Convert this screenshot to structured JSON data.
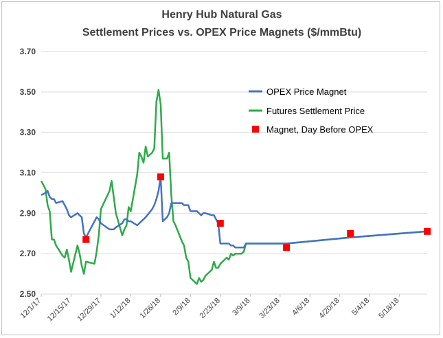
{
  "chart_data": {
    "type": "line",
    "title_lines": [
      "Henry Hub Natural Gas",
      "Settlement Prices vs. OPEX Price Magnets ($/mmBtu)"
    ],
    "x_is_date": true,
    "xlim": [
      "2017-12-01",
      "2018-05-31"
    ],
    "ylim": [
      2.5,
      3.7
    ],
    "y_ticks": [
      "2.50",
      "2.70",
      "2.90",
      "3.10",
      "3.30",
      "3.50",
      "3.70"
    ],
    "y_tick_values": [
      2.5,
      2.7,
      2.9,
      3.1,
      3.3,
      3.5,
      3.7
    ],
    "x_ticks": [
      {
        "label": "12/1/17",
        "date": "2017-12-01"
      },
      {
        "label": "12/15/17",
        "date": "2017-12-15"
      },
      {
        "label": "12/29/17",
        "date": "2017-12-29"
      },
      {
        "label": "1/12/18",
        "date": "2018-01-12"
      },
      {
        "label": "1/26/18",
        "date": "2018-01-26"
      },
      {
        "label": "2/9/18",
        "date": "2018-02-09"
      },
      {
        "label": "2/23/18",
        "date": "2018-02-23"
      },
      {
        "label": "3/9/18",
        "date": "2018-03-09"
      },
      {
        "label": "3/23/18",
        "date": "2018-03-23"
      },
      {
        "label": "4/6/18",
        "date": "2018-04-06"
      },
      {
        "label": "4/20/18",
        "date": "2018-04-20"
      },
      {
        "label": "5/4/18",
        "date": "2018-05-04"
      },
      {
        "label": "5/18/18",
        "date": "2018-05-18"
      }
    ],
    "grid": "horizontal",
    "legend_position": "right",
    "series": [
      {
        "name": "OPEX Price Magnet",
        "kind": "line",
        "color": "#4472c4",
        "points": [
          [
            "2017-12-01",
            2.99
          ],
          [
            "2017-12-03",
            3.0
          ],
          [
            "2017-12-04",
            3.01
          ],
          [
            "2017-12-05",
            2.98
          ],
          [
            "2017-12-06",
            2.97
          ],
          [
            "2017-12-07",
            2.97
          ],
          [
            "2017-12-08",
            2.95
          ],
          [
            "2017-12-11",
            2.96
          ],
          [
            "2017-12-12",
            2.94
          ],
          [
            "2017-12-13",
            2.92
          ],
          [
            "2017-12-14",
            2.89
          ],
          [
            "2017-12-15",
            2.88
          ],
          [
            "2017-12-18",
            2.9
          ],
          [
            "2017-12-19",
            2.89
          ],
          [
            "2017-12-20",
            2.88
          ],
          [
            "2017-12-21",
            2.8
          ],
          [
            "2017-12-22",
            2.78
          ],
          [
            "2017-12-26",
            2.86
          ],
          [
            "2017-12-27",
            2.88
          ],
          [
            "2017-12-28",
            2.87
          ],
          [
            "2017-12-29",
            2.85
          ],
          [
            "2018-01-02",
            2.82
          ],
          [
            "2018-01-03",
            2.82
          ],
          [
            "2018-01-04",
            2.82
          ],
          [
            "2018-01-05",
            2.83
          ],
          [
            "2018-01-08",
            2.85
          ],
          [
            "2018-01-09",
            2.87
          ],
          [
            "2018-01-10",
            2.87
          ],
          [
            "2018-01-11",
            2.86
          ],
          [
            "2018-01-12",
            2.86
          ],
          [
            "2018-01-15",
            2.84
          ],
          [
            "2018-01-16",
            2.85
          ],
          [
            "2018-01-17",
            2.86
          ],
          [
            "2018-01-18",
            2.87
          ],
          [
            "2018-01-19",
            2.88
          ],
          [
            "2018-01-22",
            2.92
          ],
          [
            "2018-01-23",
            2.94
          ],
          [
            "2018-01-24",
            2.97
          ],
          [
            "2018-01-25",
            3.01
          ],
          [
            "2018-01-26",
            3.08
          ],
          [
            "2018-01-27",
            2.86
          ],
          [
            "2018-01-29",
            2.88
          ],
          [
            "2018-01-30",
            2.9
          ],
          [
            "2018-01-31",
            2.95
          ],
          [
            "2018-02-01",
            2.95
          ],
          [
            "2018-02-02",
            2.95
          ],
          [
            "2018-02-05",
            2.95
          ],
          [
            "2018-02-06",
            2.94
          ],
          [
            "2018-02-07",
            2.94
          ],
          [
            "2018-02-08",
            2.94
          ],
          [
            "2018-02-09",
            2.91
          ],
          [
            "2018-02-12",
            2.91
          ],
          [
            "2018-02-13",
            2.9
          ],
          [
            "2018-02-14",
            2.89
          ],
          [
            "2018-02-15",
            2.9
          ],
          [
            "2018-02-16",
            2.9
          ],
          [
            "2018-02-19",
            2.89
          ],
          [
            "2018-02-20",
            2.89
          ],
          [
            "2018-02-21",
            2.87
          ],
          [
            "2018-02-22",
            2.85
          ],
          [
            "2018-02-23",
            2.75
          ],
          [
            "2018-02-26",
            2.75
          ],
          [
            "2018-02-27",
            2.75
          ],
          [
            "2018-02-28",
            2.74
          ],
          [
            "2018-03-01",
            2.74
          ],
          [
            "2018-03-02",
            2.73
          ],
          [
            "2018-03-05",
            2.73
          ],
          [
            "2018-03-06",
            2.73
          ],
          [
            "2018-03-07",
            2.75
          ],
          [
            "2018-03-08",
            2.75
          ],
          [
            "2018-03-09",
            2.75
          ],
          [
            "2018-03-26",
            2.75
          ],
          [
            "2018-04-25",
            2.78
          ],
          [
            "2018-05-31",
            2.81
          ]
        ]
      },
      {
        "name": "Futures Settlement Price",
        "kind": "line",
        "color": "#2eaa4a",
        "points": [
          [
            "2017-12-01",
            3.06
          ],
          [
            "2017-12-02",
            3.04
          ],
          [
            "2017-12-03",
            3.02
          ],
          [
            "2017-12-04",
            2.94
          ],
          [
            "2017-12-05",
            2.91
          ],
          [
            "2017-12-06",
            2.77
          ],
          [
            "2017-12-07",
            2.77
          ],
          [
            "2017-12-08",
            2.74
          ],
          [
            "2017-12-11",
            2.69
          ],
          [
            "2017-12-12",
            2.68
          ],
          [
            "2017-12-13",
            2.72
          ],
          [
            "2017-12-14",
            2.67
          ],
          [
            "2017-12-15",
            2.61
          ],
          [
            "2017-12-18",
            2.74
          ],
          [
            "2017-12-19",
            2.7
          ],
          [
            "2017-12-20",
            2.64
          ],
          [
            "2017-12-21",
            2.6
          ],
          [
            "2017-12-22",
            2.66
          ],
          [
            "2017-12-26",
            2.65
          ],
          [
            "2017-12-27",
            2.71
          ],
          [
            "2017-12-28",
            2.79
          ],
          [
            "2017-12-29",
            2.92
          ],
          [
            "2018-01-02",
            3.01
          ],
          [
            "2018-01-03",
            3.06
          ],
          [
            "2018-01-04",
            2.98
          ],
          [
            "2018-01-05",
            2.9
          ],
          [
            "2018-01-08",
            2.79
          ],
          [
            "2018-01-09",
            2.82
          ],
          [
            "2018-01-10",
            2.84
          ],
          [
            "2018-01-11",
            2.93
          ],
          [
            "2018-01-12",
            2.91
          ],
          [
            "2018-01-15",
            3.09
          ],
          [
            "2018-01-16",
            3.2
          ],
          [
            "2018-01-17",
            3.18
          ],
          [
            "2018-01-18",
            3.15
          ],
          [
            "2018-01-19",
            3.23
          ],
          [
            "2018-01-20",
            3.18
          ],
          [
            "2018-01-22",
            3.2
          ],
          [
            "2018-01-23",
            3.22
          ],
          [
            "2018-01-24",
            3.45
          ],
          [
            "2018-01-25",
            3.51
          ],
          [
            "2018-01-26",
            3.44
          ],
          [
            "2018-01-27",
            3.17
          ],
          [
            "2018-01-29",
            3.17
          ],
          [
            "2018-01-30",
            3.2
          ],
          [
            "2018-01-31",
            2.99
          ],
          [
            "2018-02-01",
            2.86
          ],
          [
            "2018-02-02",
            2.84
          ],
          [
            "2018-02-05",
            2.76
          ],
          [
            "2018-02-06",
            2.74
          ],
          [
            "2018-02-07",
            2.68
          ],
          [
            "2018-02-08",
            2.66
          ],
          [
            "2018-02-09",
            2.58
          ],
          [
            "2018-02-12",
            2.55
          ],
          [
            "2018-02-13",
            2.58
          ],
          [
            "2018-02-14",
            2.56
          ],
          [
            "2018-02-15",
            2.57
          ],
          [
            "2018-02-16",
            2.59
          ],
          [
            "2018-02-19",
            2.62
          ],
          [
            "2018-02-20",
            2.66
          ],
          [
            "2018-02-21",
            2.63
          ],
          [
            "2018-02-22",
            2.63
          ],
          [
            "2018-02-23",
            2.65
          ],
          [
            "2018-02-26",
            2.68
          ],
          [
            "2018-02-27",
            2.67
          ],
          [
            "2018-02-28",
            2.7
          ],
          [
            "2018-03-01",
            2.69
          ],
          [
            "2018-03-02",
            2.7
          ],
          [
            "2018-03-05",
            2.7
          ],
          [
            "2018-03-06",
            2.71
          ],
          [
            "2018-03-07",
            2.75
          ],
          [
            "2018-03-08",
            2.75
          ],
          [
            "2018-03-09",
            2.75
          ],
          [
            "2018-03-26",
            2.75
          ],
          [
            "2018-04-25",
            2.78
          ],
          [
            "2018-05-31",
            2.81
          ]
        ]
      },
      {
        "name": "Magnet, Day Before OPEX",
        "kind": "marker",
        "color": "#ff0000",
        "points": [
          [
            "2017-12-22",
            2.77
          ],
          [
            "2018-01-26",
            3.08
          ],
          [
            "2018-02-23",
            2.85
          ],
          [
            "2018-03-26",
            2.73
          ],
          [
            "2018-04-25",
            2.8
          ],
          [
            "2018-05-31",
            2.81
          ]
        ]
      }
    ]
  }
}
